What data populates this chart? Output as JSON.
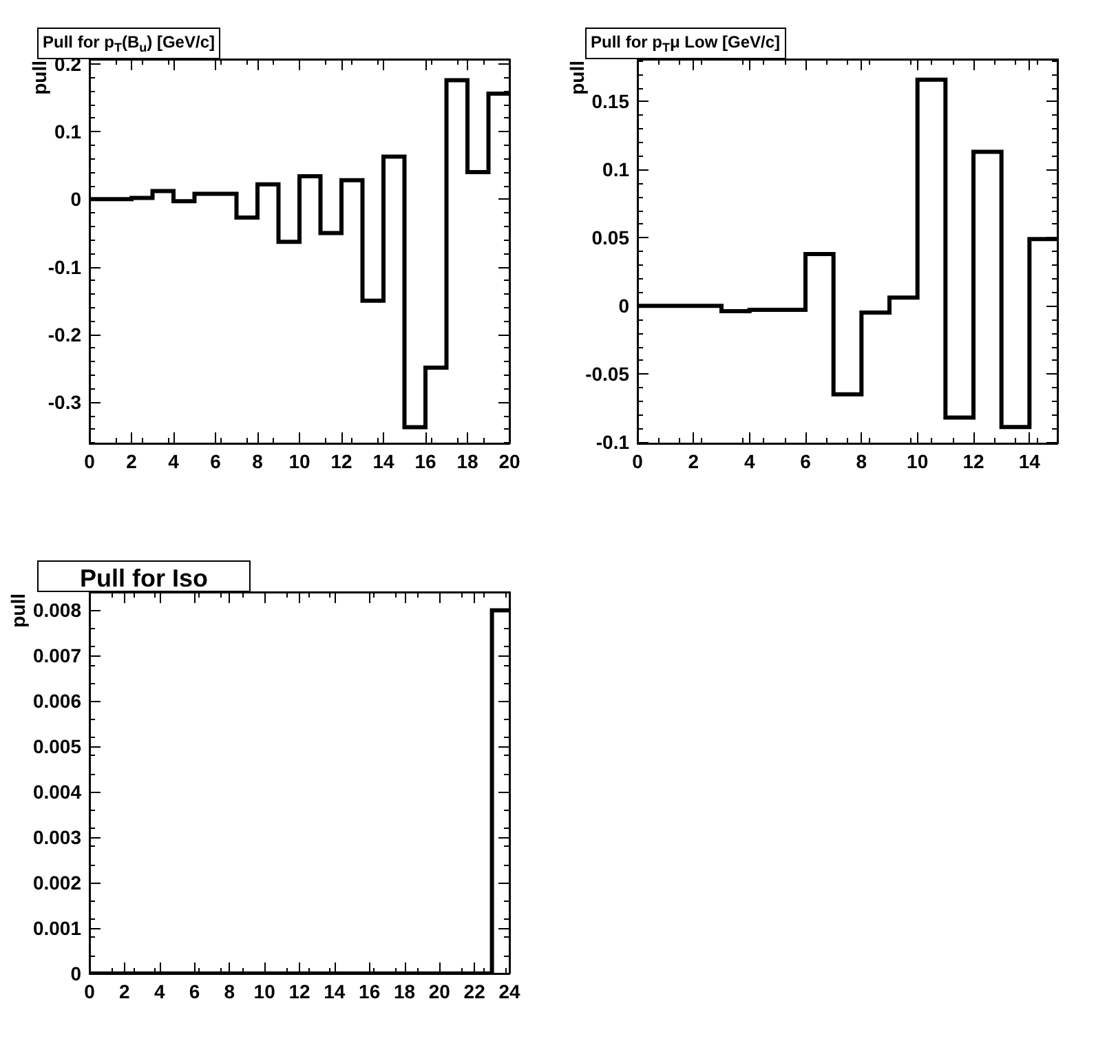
{
  "chart_data": [
    {
      "type": "histogram",
      "title": "Pull for p$_{T}$(B$_{u}$) [GeV/c]",
      "ylabel": "pull",
      "color": "#000000",
      "bins": [
        0,
        1,
        2,
        3,
        4,
        5,
        6,
        7,
        8,
        9,
        10,
        11,
        12,
        13,
        14,
        15,
        16,
        17,
        18,
        19,
        20
      ],
      "values": [
        0,
        0,
        0.002,
        0.012,
        -0.003,
        0.008,
        0.008,
        -0.027,
        0.022,
        -0.063,
        0.034,
        -0.05,
        0.028,
        -0.15,
        0.063,
        -0.337,
        -0.249,
        0.176,
        0.04,
        0.156
      ],
      "xlim": [
        0,
        20
      ],
      "xticks": [
        0,
        2,
        4,
        6,
        8,
        10,
        12,
        14,
        16,
        18,
        20
      ],
      "ylim": [
        -0.361,
        0.207
      ],
      "yticks": [
        -0.3,
        -0.2,
        -0.1,
        0,
        0.1,
        0.2
      ]
    },
    {
      "type": "histogram",
      "title": "Pull for p$_{T}$μ Low [GeV/c]",
      "ylabel": "pull",
      "color": "#000000",
      "bins": [
        0,
        1,
        2,
        3,
        4,
        5,
        6,
        7,
        8,
        9,
        10,
        11,
        12,
        13,
        14,
        15
      ],
      "values": [
        0,
        0,
        0,
        -0.004,
        -0.003,
        -0.003,
        0.038,
        -0.065,
        -0.005,
        0.006,
        0.166,
        -0.082,
        0.113,
        -0.089,
        0.049
      ],
      "xlim": [
        0,
        15
      ],
      "xticks": [
        0,
        2,
        4,
        6,
        8,
        10,
        12,
        14
      ],
      "ylim": [
        -0.101,
        0.181
      ],
      "yticks": [
        -0.1,
        -0.05,
        0,
        0.05,
        0.1,
        0.15
      ]
    },
    {
      "type": "histogram",
      "title": "Pull for Iso",
      "ylabel": "pull",
      "color": "#000000",
      "bins": [
        0,
        1,
        2,
        3,
        4,
        5,
        6,
        7,
        8,
        9,
        10,
        11,
        12,
        13,
        14,
        15,
        16,
        17,
        18,
        19,
        20,
        21,
        22,
        23,
        24
      ],
      "values": [
        0,
        0,
        0,
        0,
        0,
        0,
        0,
        0,
        0,
        0,
        0,
        0,
        0,
        0,
        0,
        0,
        0,
        0,
        0,
        0,
        0,
        0,
        0,
        0.008
      ],
      "xlim": [
        0,
        24
      ],
      "xticks": [
        0,
        2,
        4,
        6,
        8,
        10,
        12,
        14,
        16,
        18,
        20,
        22,
        24
      ],
      "ylim": [
        0,
        0.0084
      ],
      "yticks": [
        0,
        0.001,
        0.002,
        0.003,
        0.004,
        0.005,
        0.006,
        0.007,
        0.008
      ]
    }
  ]
}
